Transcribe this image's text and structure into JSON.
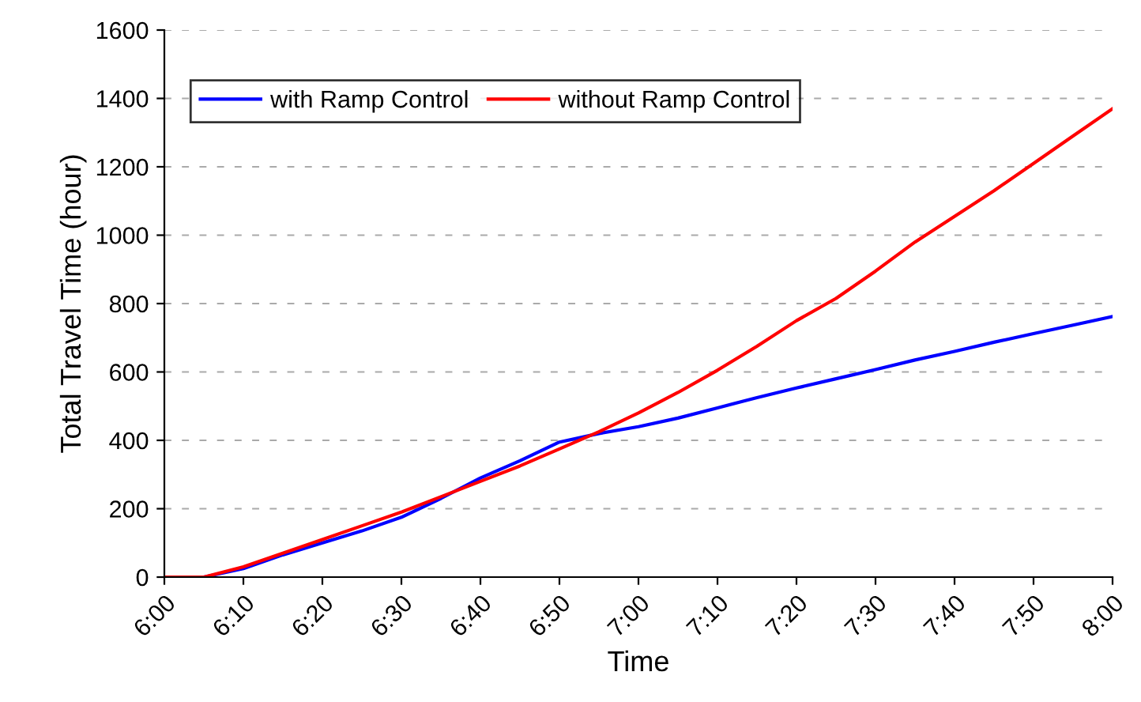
{
  "chart_data": {
    "type": "line",
    "xlabel": "Time",
    "ylabel": "Total Travel Time (hour)",
    "x": [
      6.0,
      6.0833,
      6.1667,
      6.25,
      6.3333,
      6.4167,
      6.5,
      6.5833,
      6.6667,
      6.75,
      6.8333,
      6.9167,
      7.0,
      7.0833,
      7.1667,
      7.25,
      7.3333,
      7.4167,
      7.5,
      7.5833,
      7.6667,
      7.75,
      7.8333,
      7.9167,
      8.0
    ],
    "series": [
      {
        "name": "with Ramp Control",
        "color": "#0000ff",
        "values": [
          0,
          0,
          25,
          65,
          100,
          135,
          175,
          230,
          290,
          340,
          395,
          420,
          440,
          465,
          495,
          525,
          553,
          580,
          607,
          635,
          660,
          687,
          712,
          737,
          762
        ]
      },
      {
        "name": "without Ramp Control",
        "color": "#ff0000",
        "values": [
          0,
          0,
          30,
          70,
          110,
          150,
          190,
          235,
          280,
          325,
          375,
          425,
          480,
          540,
          605,
          675,
          750,
          815,
          895,
          980,
          1055,
          1130,
          1210,
          1290,
          1370
        ]
      }
    ],
    "xlim": [
      6.0,
      8.0
    ],
    "ylim": [
      0,
      1600
    ],
    "xticks": [
      {
        "value": 6.0,
        "label": "6:00"
      },
      {
        "value": 6.1667,
        "label": "6:10"
      },
      {
        "value": 6.3333,
        "label": "6:20"
      },
      {
        "value": 6.5,
        "label": "6:30"
      },
      {
        "value": 6.6667,
        "label": "6:40"
      },
      {
        "value": 6.8333,
        "label": "6:50"
      },
      {
        "value": 7.0,
        "label": "7:00"
      },
      {
        "value": 7.1667,
        "label": "7:10"
      },
      {
        "value": 7.3333,
        "label": "7:20"
      },
      {
        "value": 7.5,
        "label": "7:30"
      },
      {
        "value": 7.6667,
        "label": "7:40"
      },
      {
        "value": 7.8333,
        "label": "7:50"
      },
      {
        "value": 8.0,
        "label": "8:00"
      }
    ],
    "yticks": [
      0,
      200,
      400,
      600,
      800,
      1000,
      1200,
      1400,
      1600
    ],
    "grid": "y",
    "legend": "top left",
    "marker": "none",
    "line_style": "solid"
  }
}
